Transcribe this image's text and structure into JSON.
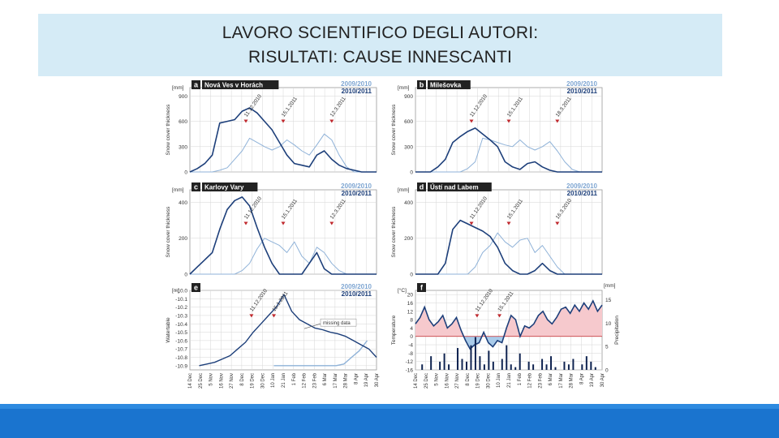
{
  "slide": {
    "title_line1": "LAVORO SCIENTIFICO DEGLI AUTORI:",
    "title_line2": "RISULTATI: CAUSE INNESCANTI"
  },
  "colors": {
    "series_2009": "#8fb2d8",
    "series_2010": "#1d3f7a",
    "legend_2009": "#7fa6d2",
    "legend_2010": "#1d3f7a",
    "grid": "#d6d6d6",
    "event": "#c0282d",
    "pos_fill": "#f6c9cd",
    "neg_fill": "#a9cbea",
    "band": "#d5ebf6",
    "footer": "#1a74cf"
  },
  "chart_data": [
    {
      "panel": "a",
      "type": "line",
      "station": "Nová Ves v Horách",
      "unit": "[mm]",
      "ylabel": "Snow cover thickness",
      "yticks": [
        "0",
        "300",
        "600",
        "900"
      ],
      "ylim": [
        0,
        1000
      ],
      "grid": true,
      "legend": [
        "2009/2010",
        "2010/2011"
      ],
      "annotations": [
        "11.12.2010",
        "15.1.2011",
        "12.3.2011"
      ],
      "series": [
        {
          "name": "2009/2010",
          "values": [
            0,
            0,
            0,
            0,
            20,
            50,
            150,
            250,
            400,
            350,
            300,
            260,
            300,
            380,
            320,
            250,
            200,
            320,
            450,
            380,
            200,
            60,
            0,
            0,
            0,
            0
          ]
        },
        {
          "name": "2010/2011",
          "values": [
            0,
            40,
            100,
            200,
            580,
            600,
            620,
            720,
            760,
            700,
            600,
            500,
            350,
            200,
            100,
            80,
            60,
            200,
            250,
            150,
            80,
            40,
            20,
            0,
            0,
            0
          ]
        }
      ]
    },
    {
      "panel": "b",
      "type": "line",
      "station": "Milešovka",
      "unit": "[mm]",
      "ylabel": "Snow cover thickness",
      "yticks": [
        "0",
        "300",
        "600",
        "900"
      ],
      "ylim": [
        0,
        1000
      ],
      "grid": true,
      "legend": [
        "2009/2010",
        "2010/2011"
      ],
      "annotations": [
        "11.12.2010",
        "15.1.2011",
        "18.3.2011"
      ],
      "series": [
        {
          "name": "2009/2010",
          "values": [
            0,
            0,
            0,
            0,
            0,
            0,
            0,
            40,
            120,
            400,
            380,
            350,
            320,
            300,
            380,
            300,
            260,
            300,
            360,
            250,
            120,
            30,
            0,
            0,
            0,
            0
          ]
        },
        {
          "name": "2010/2011",
          "values": [
            0,
            0,
            0,
            60,
            150,
            350,
            420,
            480,
            520,
            450,
            380,
            300,
            120,
            60,
            30,
            100,
            120,
            60,
            20,
            0,
            0,
            0,
            0,
            0,
            0,
            0
          ]
        }
      ]
    },
    {
      "panel": "c",
      "type": "line",
      "station": "Karlovy Vary",
      "unit": "[mm]",
      "ylabel": "Snow cover thickness",
      "yticks": [
        "0",
        "200",
        "400"
      ],
      "ylim": [
        0,
        470
      ],
      "grid": true,
      "legend": [
        "2009/2010",
        "2010/2011"
      ],
      "annotations": [
        "11.12.2010",
        "15.1.2011",
        "12.3.2011"
      ],
      "series": [
        {
          "name": "2009/2010",
          "values": [
            0,
            0,
            0,
            0,
            0,
            0,
            0,
            20,
            60,
            140,
            200,
            180,
            160,
            120,
            180,
            100,
            60,
            150,
            120,
            60,
            20,
            0,
            0,
            0,
            0,
            0
          ]
        },
        {
          "name": "2010/2011",
          "values": [
            0,
            40,
            80,
            120,
            250,
            360,
            410,
            430,
            380,
            260,
            150,
            60,
            0,
            0,
            0,
            0,
            60,
            120,
            30,
            0,
            0,
            0,
            0,
            0,
            0,
            0
          ]
        }
      ]
    },
    {
      "panel": "d",
      "type": "line",
      "station": "Ústí nad Labem",
      "unit": "[mm]",
      "ylabel": "Snow cover thickness",
      "yticks": [
        "0",
        "200",
        "400"
      ],
      "ylim": [
        0,
        470
      ],
      "grid": true,
      "legend": [
        "2009/2010",
        "2010/2011"
      ],
      "annotations": [
        "11.12.2010",
        "15.1.2011",
        "16.3.2010"
      ],
      "series": [
        {
          "name": "2009/2010",
          "values": [
            0,
            0,
            0,
            0,
            0,
            0,
            0,
            0,
            40,
            120,
            160,
            230,
            180,
            150,
            190,
            200,
            120,
            160,
            100,
            40,
            0,
            0,
            0,
            0,
            0,
            0
          ]
        },
        {
          "name": "2010/2011",
          "values": [
            0,
            0,
            0,
            0,
            60,
            250,
            300,
            280,
            260,
            240,
            210,
            150,
            60,
            20,
            0,
            0,
            20,
            60,
            20,
            0,
            0,
            0,
            0,
            0,
            0,
            0
          ]
        }
      ]
    },
    {
      "panel": "e",
      "type": "line",
      "unit": "[m]",
      "ylabel": "Watertable",
      "yticks": [
        "-10.9",
        "-10.8",
        "-10.7",
        "-10.6",
        "-10.5",
        "-10.4",
        "-10.3",
        "-10.2",
        "-10.1",
        "-10.0"
      ],
      "ylim": [
        -10.95,
        -10.0
      ],
      "grid": true,
      "legend": [
        "2009/2010",
        "2010/2011"
      ],
      "annotations": [
        "11.12.2010",
        "15.1.2011"
      ],
      "missing_data_label": "missing data",
      "x_labels": [
        "14 Dec",
        "25 Dec",
        "5 Nov",
        "16 Nov",
        "27 Nov",
        "8 Dec",
        "19 Dec",
        "30 Dec",
        "10 Jan",
        "21 Jan",
        "1 Feb",
        "12 Feb",
        "23 Feb",
        "6 Mar",
        "17 Mar",
        "28 Mar",
        "8 Apr",
        "19 Apr",
        "30 Apr"
      ],
      "series": [
        {
          "name": "2009/2010",
          "values": [
            -10.9,
            -10.9,
            -10.9,
            -10.9,
            -10.9,
            -10.9,
            -10.9,
            -10.9,
            -10.9,
            -10.88,
            -10.8,
            -10.72,
            -10.6
          ]
        },
        {
          "name": "2010/2011",
          "values": [
            -10.9,
            -10.88,
            -10.86,
            -10.82,
            -10.78,
            -10.7,
            -10.62,
            -10.5,
            -10.4,
            -10.3,
            -10.2,
            -10.05,
            -10.25,
            -10.35,
            -10.4,
            -10.45,
            -10.47,
            -10.5,
            -10.52,
            -10.55,
            -10.6,
            -10.65,
            -10.7,
            -10.8
          ]
        }
      ]
    },
    {
      "panel": "f",
      "type": "line",
      "unit_left": "[°C]",
      "unit_right": "[mm]",
      "ylabel": "Temperature",
      "ylabel_right": "Precipitation",
      "yticks_left": [
        "-16",
        "-12",
        "-8",
        "-4",
        "0",
        "4",
        "8",
        "12",
        "16",
        "20"
      ],
      "yticks_right": [
        "0",
        "5",
        "10",
        "15"
      ],
      "ylim": [
        -16,
        22
      ],
      "grid": true,
      "annotations": [
        "11.12.2010",
        "15.1.2011"
      ],
      "x_labels": [
        "14 Dec",
        "25 Dec",
        "5 Nov",
        "16 Nov",
        "27 Nov",
        "8 Dec",
        "19 Dec",
        "30 Dec",
        "10 Jan",
        "21 Jan",
        "1 Feb",
        "12 Feb",
        "23 Feb",
        "6 Mar",
        "17 Mar",
        "28 Mar",
        "8 Apr",
        "19 Apr",
        "30 Apr"
      ],
      "temperature": [
        6,
        9,
        14,
        8,
        5,
        7,
        10,
        4,
        6,
        9,
        3,
        -2,
        -6,
        -4,
        -3,
        2,
        -3,
        -5,
        -2,
        -3,
        4,
        10,
        8,
        0,
        5,
        4,
        6,
        10,
        12,
        8,
        6,
        9,
        13,
        14,
        11,
        15,
        12,
        16,
        13,
        17,
        12,
        15
      ],
      "precipitation": [
        0,
        2,
        0,
        5,
        0,
        3,
        6,
        2,
        0,
        8,
        4,
        3,
        9,
        12,
        5,
        2,
        7,
        3,
        0,
        4,
        9,
        2,
        1,
        6,
        0,
        3,
        2,
        0,
        4,
        2,
        5,
        1,
        0,
        3,
        2,
        4,
        0,
        2,
        5,
        3,
        1,
        0
      ]
    }
  ]
}
